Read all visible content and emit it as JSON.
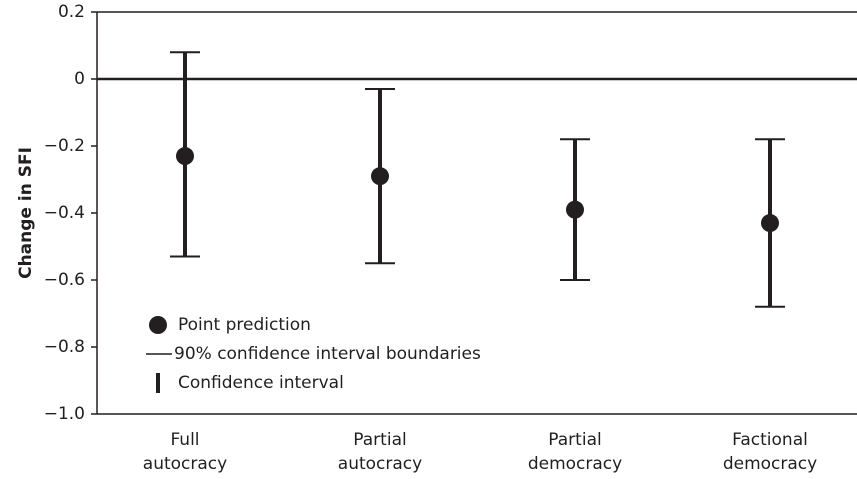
{
  "chart_data": {
    "type": "errorbar",
    "y_label": "Change in SFI",
    "categories": [
      "Full\nautocracy",
      "Partial\nautocracy",
      "Partial\ndemocracy",
      "Factional\ndemocracy"
    ],
    "series": [
      {
        "name": "Point prediction",
        "color": "#231f20",
        "values": [
          -0.23,
          -0.29,
          -0.39,
          -0.43
        ],
        "lower": [
          -0.53,
          -0.55,
          -0.6,
          -0.68
        ],
        "upper": [
          0.08,
          -0.03,
          -0.18,
          -0.18
        ]
      }
    ],
    "legend_entries": [
      "Point prediction",
      "90% confidence interval boundaries",
      "Confidence interval"
    ],
    "legend_position": "lower left",
    "reference_line": 0,
    "ylim": [
      -1.0,
      0.2
    ],
    "yticks": [
      {
        "value": -1.0,
        "label": "−1.0"
      },
      {
        "value": -0.8,
        "label": "−0.8"
      },
      {
        "value": -0.6,
        "label": "−0.6"
      },
      {
        "value": -0.4,
        "label": "−0.4"
      },
      {
        "value": -0.2,
        "label": "−0.2"
      },
      0,
      0.2
    ]
  }
}
